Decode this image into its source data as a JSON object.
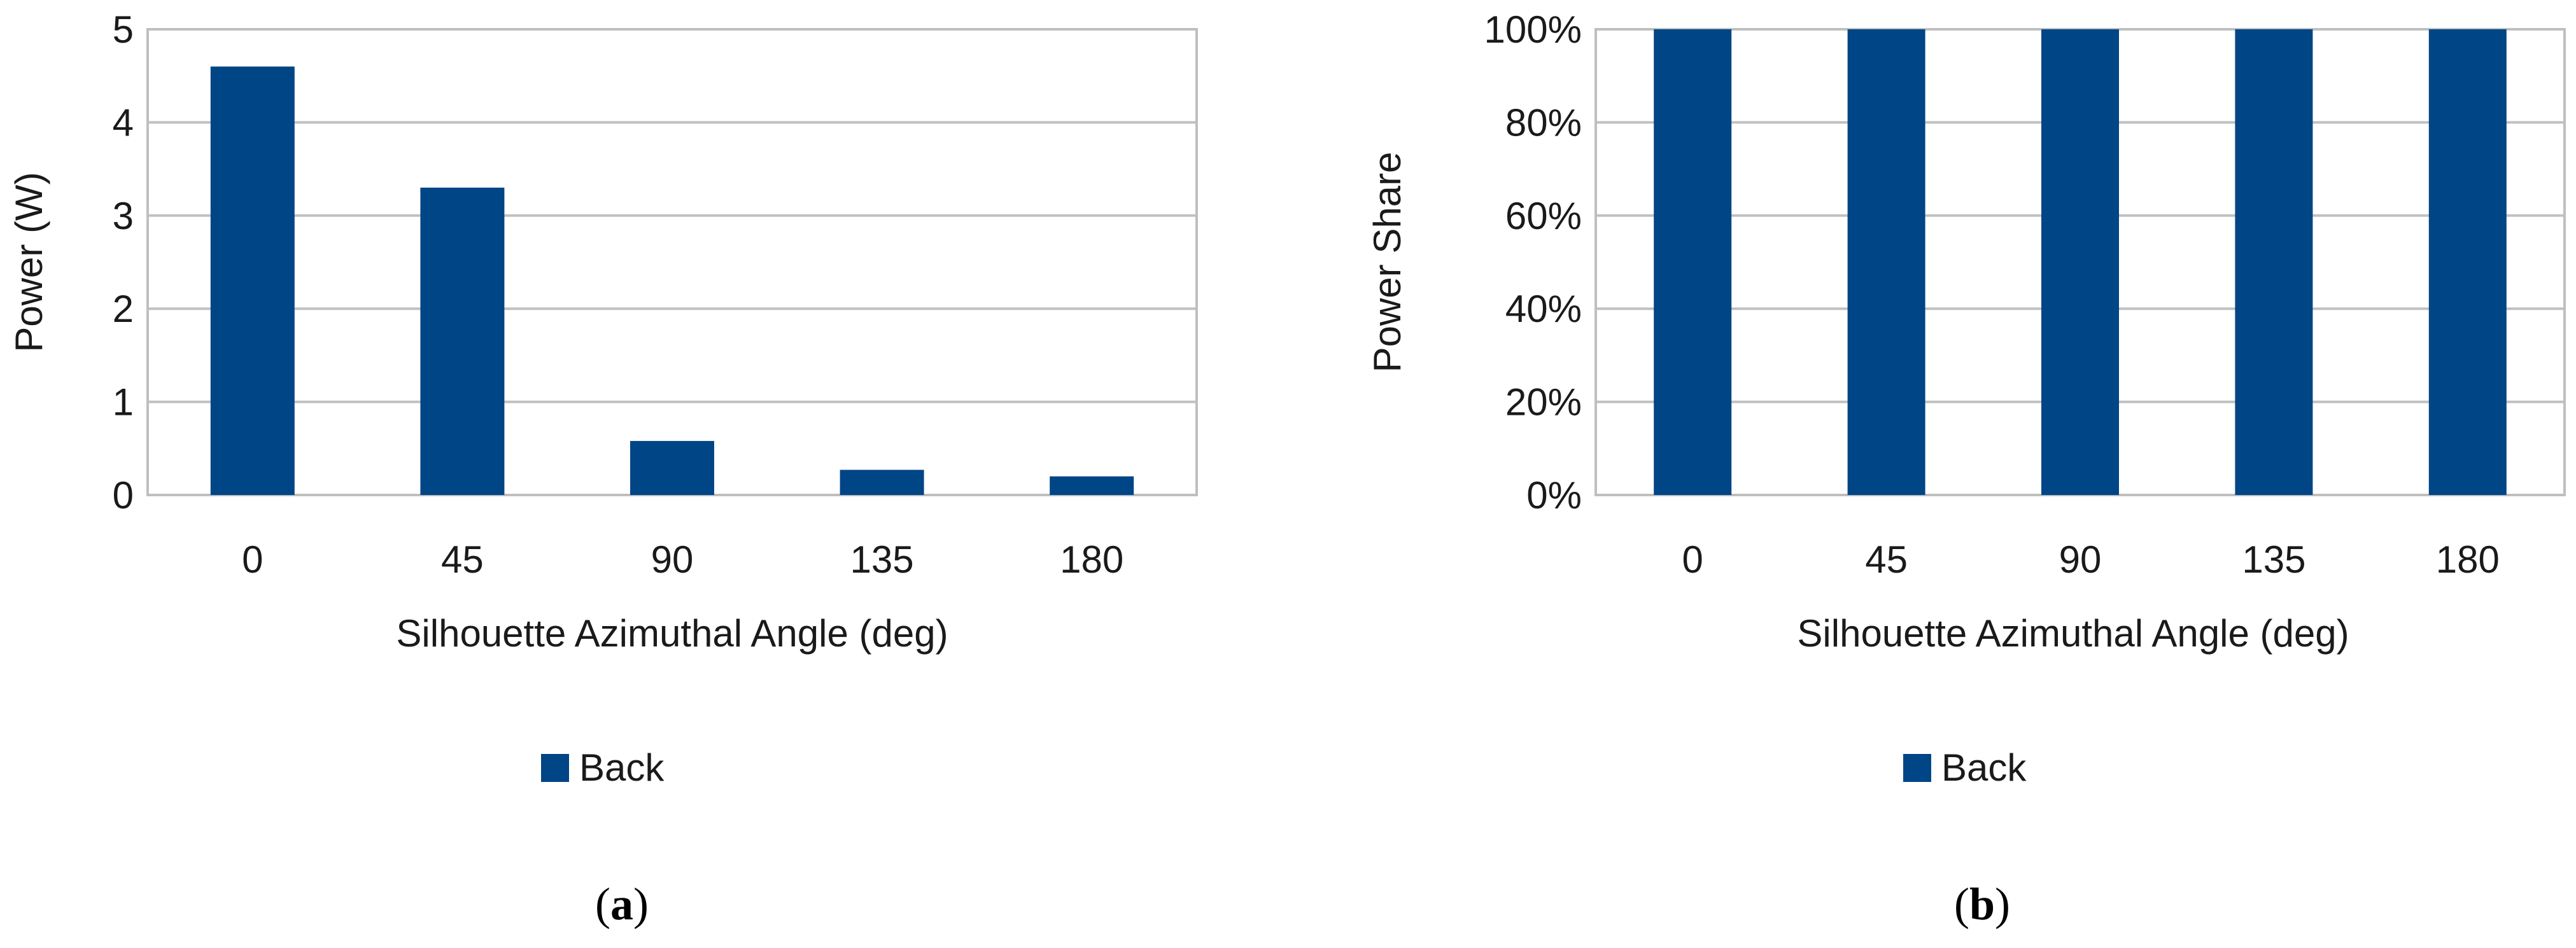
{
  "colors": {
    "bar": "#004586",
    "grid": "#c0c0c0",
    "frame": "#bfbfbf"
  },
  "chart_data": [
    {
      "type": "bar",
      "panel_label": "a",
      "categories": [
        "0",
        "45",
        "90",
        "135",
        "180"
      ],
      "series": [
        {
          "name": "Back",
          "values": [
            4.6,
            3.3,
            0.58,
            0.27,
            0.2
          ]
        }
      ],
      "xlabel": "Silhouette Azimuthal Angle (deg)",
      "ylabel": "Power (W)",
      "ylim": [
        0,
        5
      ],
      "yticks": [
        "0",
        "1",
        "2",
        "3",
        "4",
        "5"
      ],
      "grid": true,
      "legend": "bottom"
    },
    {
      "type": "bar",
      "panel_label": "b",
      "categories": [
        "0",
        "45",
        "90",
        "135",
        "180"
      ],
      "series": [
        {
          "name": "Back",
          "values": [
            100,
            100,
            100,
            100,
            100
          ]
        }
      ],
      "xlabel": "Silhouette Azimuthal Angle (deg)",
      "ylabel": "Power Share",
      "ylim": [
        0,
        100
      ],
      "yticks": [
        "0%",
        "20%",
        "40%",
        "60%",
        "80%",
        "100%"
      ],
      "grid": true,
      "legend": "bottom"
    }
  ]
}
